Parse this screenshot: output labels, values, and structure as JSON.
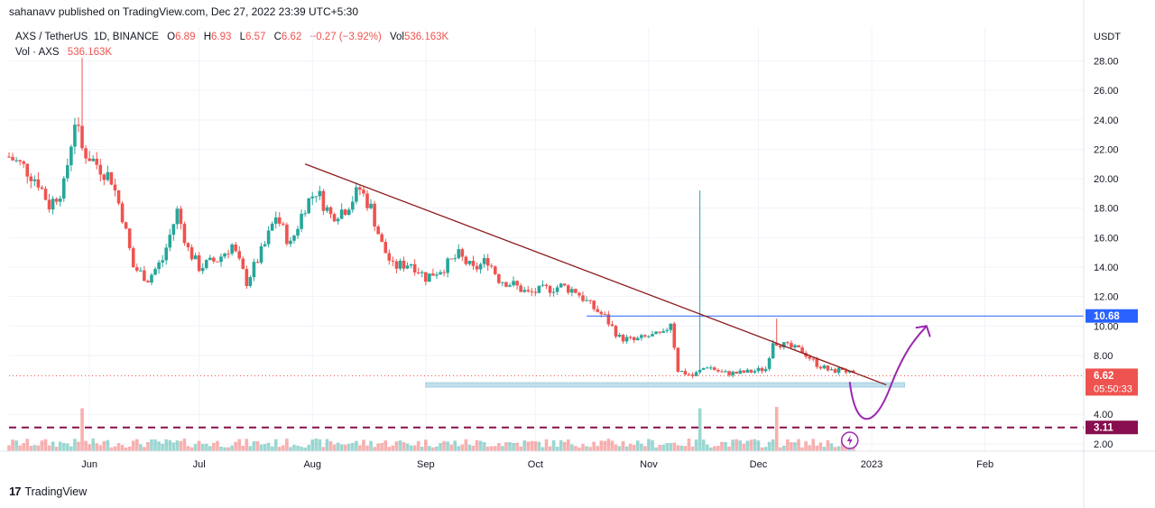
{
  "header": {
    "credit": "sahanavv published on TradingView.com, Dec 27, 2022 23:39 UTC+5:30"
  },
  "legend": {
    "symbol": "AXS / TetherUS, 1D, BINANCE",
    "open_label": "O",
    "open": "6.89",
    "high_label": "H",
    "high": "6.93",
    "low_label": "L",
    "low": "6.57",
    "close_label": "C",
    "close": "6.62",
    "change": "−0.27 (−3.92%)",
    "vol_label": "Vol",
    "vol": "536.163K",
    "vol_row_label": "Vol · AXS",
    "vol_row_value": "536.163K"
  },
  "footer": {
    "brand": "TradingView"
  },
  "colors": {
    "up": "#26a69a",
    "down": "#ef5350",
    "trendline": "#8b1a1a",
    "hline": "#2962ff",
    "support_zone": "#b2d8e8",
    "dashed": "#880e4f",
    "annotation": "#9c27b0",
    "grid": "#f0f3fa"
  },
  "chart_data": {
    "type": "candlestick",
    "currency_label": "USDT",
    "y_ticks": [
      2,
      4,
      8,
      10,
      12,
      14,
      16,
      18,
      20,
      22,
      24,
      26,
      28
    ],
    "y_tick_labels": [
      "2.00",
      "4.00",
      "8.00",
      "10.00",
      "12.00",
      "14.00",
      "16.00",
      "18.00",
      "20.00",
      "22.00",
      "24.00",
      "26.00",
      "28.00"
    ],
    "ylim": [
      1.5,
      30.3
    ],
    "x_labels": [
      {
        "label": "Jun",
        "date": "2022-06-01"
      },
      {
        "label": "Jul",
        "date": "2022-07-01"
      },
      {
        "label": "Aug",
        "date": "2022-08-01"
      },
      {
        "label": "Sep",
        "date": "2022-09-01"
      },
      {
        "label": "Oct",
        "date": "2022-10-01"
      },
      {
        "label": "Nov",
        "date": "2022-11-01"
      },
      {
        "label": "Dec",
        "date": "2022-12-01"
      },
      {
        "label": "2023",
        "date": "2023-01-01"
      },
      {
        "label": "Feb",
        "date": "2023-02-01"
      }
    ],
    "start_date": "2022-05-10",
    "end_date": "2023-02-28",
    "close_series": [
      {
        "date": "2022-05-10",
        "close": 21.5
      },
      {
        "date": "2022-05-14",
        "close": 20.8
      },
      {
        "date": "2022-05-18",
        "close": 19.8
      },
      {
        "date": "2022-05-21",
        "close": 18.2
      },
      {
        "date": "2022-05-25",
        "close": 19.5
      },
      {
        "date": "2022-05-28",
        "close": 24.0
      },
      {
        "date": "2022-05-30",
        "close": 22.0
      },
      {
        "date": "2022-06-03",
        "close": 21.0
      },
      {
        "date": "2022-06-07",
        "close": 20.0
      },
      {
        "date": "2022-06-10",
        "close": 17.5
      },
      {
        "date": "2022-06-13",
        "close": 14.0
      },
      {
        "date": "2022-06-17",
        "close": 13.2
      },
      {
        "date": "2022-06-21",
        "close": 14.5
      },
      {
        "date": "2022-06-25",
        "close": 17.8
      },
      {
        "date": "2022-06-28",
        "close": 15.2
      },
      {
        "date": "2022-07-01",
        "close": 14.0
      },
      {
        "date": "2022-07-06",
        "close": 14.5
      },
      {
        "date": "2022-07-10",
        "close": 15.5
      },
      {
        "date": "2022-07-14",
        "close": 13.0
      },
      {
        "date": "2022-07-19",
        "close": 15.5
      },
      {
        "date": "2022-07-22",
        "close": 17.5
      },
      {
        "date": "2022-07-26",
        "close": 15.5
      },
      {
        "date": "2022-07-30",
        "close": 18.2
      },
      {
        "date": "2022-08-02",
        "close": 19.2
      },
      {
        "date": "2022-08-06",
        "close": 17.5
      },
      {
        "date": "2022-08-10",
        "close": 18.0
      },
      {
        "date": "2022-08-14",
        "close": 19.3
      },
      {
        "date": "2022-08-17",
        "close": 18.0
      },
      {
        "date": "2022-08-20",
        "close": 15.5
      },
      {
        "date": "2022-08-23",
        "close": 14.0
      },
      {
        "date": "2022-08-28",
        "close": 14.3
      },
      {
        "date": "2022-09-01",
        "close": 13.3
      },
      {
        "date": "2022-09-06",
        "close": 14.0
      },
      {
        "date": "2022-09-10",
        "close": 14.8
      },
      {
        "date": "2022-09-14",
        "close": 13.8
      },
      {
        "date": "2022-09-18",
        "close": 14.5
      },
      {
        "date": "2022-09-21",
        "close": 13.2
      },
      {
        "date": "2022-09-25",
        "close": 12.8
      },
      {
        "date": "2022-09-29",
        "close": 12.2
      },
      {
        "date": "2022-10-04",
        "close": 12.5
      },
      {
        "date": "2022-10-08",
        "close": 12.7
      },
      {
        "date": "2022-10-12",
        "close": 12.4
      },
      {
        "date": "2022-10-16",
        "close": 11.4
      },
      {
        "date": "2022-10-20",
        "close": 10.6
      },
      {
        "date": "2022-10-24",
        "close": 9.2
      },
      {
        "date": "2022-10-28",
        "close": 9.0
      },
      {
        "date": "2022-11-01",
        "close": 9.3
      },
      {
        "date": "2022-11-05",
        "close": 9.4
      },
      {
        "date": "2022-11-07",
        "close": 10.3
      },
      {
        "date": "2022-11-09",
        "close": 7.0
      },
      {
        "date": "2022-11-13",
        "close": 6.6
      },
      {
        "date": "2022-11-17",
        "close": 7.3
      },
      {
        "date": "2022-11-21",
        "close": 6.8
      },
      {
        "date": "2022-11-25",
        "close": 6.8
      },
      {
        "date": "2022-11-29",
        "close": 6.9
      },
      {
        "date": "2022-12-03",
        "close": 7.1
      },
      {
        "date": "2022-12-05",
        "close": 9.0
      },
      {
        "date": "2022-12-09",
        "close": 8.6
      },
      {
        "date": "2022-12-13",
        "close": 8.3
      },
      {
        "date": "2022-12-17",
        "close": 7.4
      },
      {
        "date": "2022-12-21",
        "close": 6.9
      },
      {
        "date": "2022-12-24",
        "close": 7.1
      },
      {
        "date": "2022-12-27",
        "close": 6.62
      }
    ],
    "spikes": [
      {
        "date": "2022-05-30",
        "high": 28.2
      },
      {
        "date": "2022-11-15",
        "high": 19.2
      },
      {
        "date": "2022-12-06",
        "high": 10.5
      }
    ],
    "annotations": {
      "trendline": {
        "from": {
          "date": "2022-07-30",
          "value": 21.0
        },
        "to": {
          "date": "2023-01-05",
          "value": 6.0
        }
      },
      "resistance_line": {
        "value": 10.68,
        "from_date": "2022-10-15"
      },
      "support_zone": {
        "low": 5.85,
        "high": 6.15,
        "from_date": "2022-09-01",
        "to_date": "2023-01-10"
      },
      "dashed_line": {
        "value": 3.11
      },
      "projection_path": [
        {
          "date": "2022-12-26",
          "value": 6.2
        },
        {
          "date": "2022-12-30",
          "value": 3.6
        },
        {
          "date": "2023-01-06",
          "value": 5.8
        },
        {
          "date": "2023-01-16",
          "value": 10.0
        }
      ]
    },
    "price_labels": [
      {
        "text": "10.68",
        "value": 10.68,
        "color": "#2962ff"
      },
      {
        "text": "6.62",
        "sub": "05:50:33",
        "value": 6.62,
        "color": "#ef5350"
      },
      {
        "text": "3.11",
        "value": 3.11,
        "color": "#880e4f"
      }
    ],
    "volume_note": "volume histogram along the bottom of the price pane"
  }
}
